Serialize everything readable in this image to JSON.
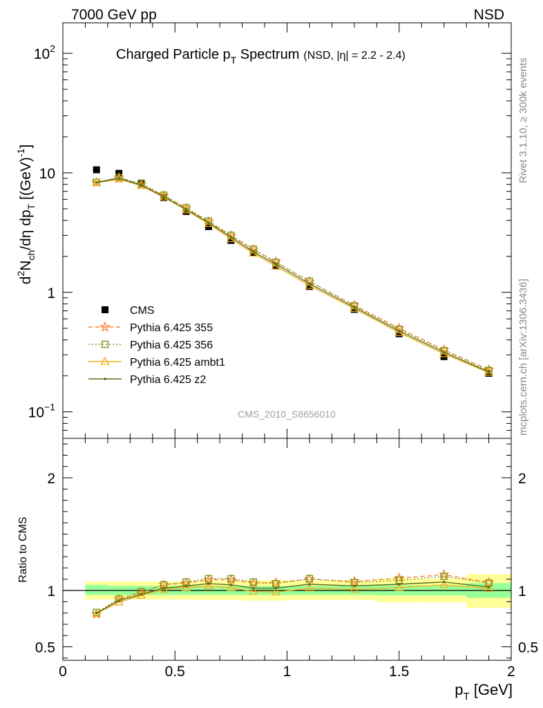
{
  "header": {
    "left": "7000 GeV pp",
    "right": "NSD"
  },
  "side_labels": {
    "rivet": "Rivet 3.1.10, ≥ 300k events",
    "mcplots": "mcplots.cern.ch [arXiv:1306.3436]"
  },
  "chart_data": [
    {
      "type": "line",
      "panel": "main",
      "title": "Charged Particle p",
      "title_sub": "T",
      "title_tail": " Spectrum",
      "title_note": "(NSD, |η| = 2.2 - 2.4)",
      "watermark": "CMS_2010_S8656010",
      "ylabel": "d²N_ch/dη dp_T [(GeV)⁻¹]",
      "yscale": "log",
      "ylim": [
        0.06,
        180
      ],
      "xlim": [
        0,
        2
      ],
      "yticks": [
        {
          "value": 100,
          "label": "10",
          "sup": "2"
        },
        {
          "value": 10,
          "label": "10",
          "sup": ""
        },
        {
          "value": 1,
          "label": "1",
          "sup": ""
        },
        {
          "value": 0.1,
          "label": "10",
          "sup": "−1"
        }
      ],
      "legend_position": "lower-left",
      "x": [
        0.15,
        0.25,
        0.35,
        0.45,
        0.55,
        0.65,
        0.75,
        0.85,
        0.95,
        1.1,
        1.3,
        1.5,
        1.7,
        1.9
      ],
      "series": [
        {
          "name": "CMS",
          "color": "#000000",
          "marker": "square-filled",
          "line": "none",
          "values": [
            10.6,
            9.9,
            8.2,
            6.2,
            4.75,
            3.55,
            2.72,
            2.14,
            1.68,
            1.12,
            0.72,
            0.45,
            0.29,
            0.21
          ]
        },
        {
          "name": "Pythia 6.425 355",
          "color": "#ff7f2a",
          "marker": "star-open",
          "line": "dashed",
          "values": [
            8.3,
            9.1,
            8.0,
            6.45,
            5.05,
            3.9,
            2.98,
            2.28,
            1.8,
            1.23,
            0.78,
            0.5,
            0.33,
            0.225
          ]
        },
        {
          "name": "Pythia 6.425 356",
          "color": "#7a9a1a",
          "marker": "square-open",
          "line": "dotted",
          "values": [
            8.35,
            9.15,
            8.1,
            6.5,
            5.1,
            3.95,
            3.0,
            2.3,
            1.78,
            1.24,
            0.77,
            0.49,
            0.325,
            0.222
          ]
        },
        {
          "name": "Pythia 6.425 ambt1",
          "color": "#f0b020",
          "marker": "triangle-open",
          "line": "solid",
          "values": [
            8.25,
            8.85,
            7.8,
            6.25,
            4.88,
            3.75,
            2.8,
            2.12,
            1.65,
            1.14,
            0.73,
            0.46,
            0.305,
            0.213
          ]
        },
        {
          "name": "Pythia 6.425 z2",
          "color": "#5a6e1c",
          "marker": "dot",
          "line": "solid",
          "values": [
            8.3,
            9.0,
            7.9,
            6.3,
            4.95,
            3.82,
            2.9,
            2.18,
            1.72,
            1.18,
            0.75,
            0.475,
            0.315,
            0.216
          ]
        }
      ]
    },
    {
      "type": "line",
      "panel": "ratio",
      "ylabel": "Ratio to CMS",
      "xlabel": "p",
      "xlabel_sub": "T",
      "xlabel_tail": " [GeV]",
      "ylim": [
        0.38,
        2.35
      ],
      "xlim": [
        0,
        2
      ],
      "yticks": [
        2,
        1,
        0.5
      ],
      "xticks": [
        0,
        0.5,
        1,
        1.5,
        2
      ],
      "xticklabels": [
        "0",
        "0.5",
        "1",
        "1.5",
        "2"
      ],
      "band_colors": {
        "stat": "#99ff99",
        "total": "#ffff99"
      },
      "bins": [
        {
          "lo": 0.1,
          "hi": 0.2,
          "stat": [
            0.96,
            1.05
          ],
          "total": [
            0.92,
            1.08
          ]
        },
        {
          "lo": 0.2,
          "hi": 0.3,
          "stat": [
            0.96,
            1.04
          ],
          "total": [
            0.92,
            1.08
          ]
        },
        {
          "lo": 0.3,
          "hi": 0.4,
          "stat": [
            0.96,
            1.04
          ],
          "total": [
            0.92,
            1.08
          ]
        },
        {
          "lo": 0.4,
          "hi": 0.5,
          "stat": [
            0.96,
            1.04
          ],
          "total": [
            0.92,
            1.08
          ]
        },
        {
          "lo": 0.5,
          "hi": 0.6,
          "stat": [
            0.96,
            1.04
          ],
          "total": [
            0.92,
            1.08
          ]
        },
        {
          "lo": 0.6,
          "hi": 0.7,
          "stat": [
            0.96,
            1.04
          ],
          "total": [
            0.915,
            1.085
          ]
        },
        {
          "lo": 0.7,
          "hi": 0.8,
          "stat": [
            0.96,
            1.04
          ],
          "total": [
            0.915,
            1.085
          ]
        },
        {
          "lo": 0.8,
          "hi": 0.9,
          "stat": [
            0.96,
            1.04
          ],
          "total": [
            0.91,
            1.09
          ]
        },
        {
          "lo": 0.9,
          "hi": 1.0,
          "stat": [
            0.96,
            1.04
          ],
          "total": [
            0.91,
            1.09
          ]
        },
        {
          "lo": 1.0,
          "hi": 1.2,
          "stat": [
            0.96,
            1.04
          ],
          "total": [
            0.915,
            1.085
          ]
        },
        {
          "lo": 1.2,
          "hi": 1.4,
          "stat": [
            0.96,
            1.04
          ],
          "total": [
            0.915,
            1.085
          ]
        },
        {
          "lo": 1.4,
          "hi": 1.6,
          "stat": [
            0.955,
            1.045
          ],
          "total": [
            0.895,
            1.105
          ]
        },
        {
          "lo": 1.6,
          "hi": 1.8,
          "stat": [
            0.955,
            1.045
          ],
          "total": [
            0.895,
            1.105
          ]
        },
        {
          "lo": 1.8,
          "hi": 2.0,
          "stat": [
            0.935,
            1.065
          ],
          "total": [
            0.845,
            1.145
          ]
        }
      ],
      "x": [
        0.15,
        0.25,
        0.35,
        0.45,
        0.55,
        0.65,
        0.75,
        0.85,
        0.95,
        1.1,
        1.3,
        1.5,
        1.7,
        1.9
      ],
      "series": [
        {
          "name": "Pythia 6.425 355",
          "color": "#ff7f2a",
          "marker": "star-open",
          "line": "dashed",
          "values": [
            0.79,
            0.92,
            0.98,
            1.05,
            1.065,
            1.095,
            1.095,
            1.065,
            1.07,
            1.1,
            1.08,
            1.11,
            1.14,
            1.07
          ]
        },
        {
          "name": "Pythia 6.425 356",
          "color": "#7a9a1a",
          "marker": "square-open",
          "line": "dotted",
          "values": [
            0.805,
            0.925,
            0.99,
            1.05,
            1.075,
            1.105,
            1.105,
            1.075,
            1.06,
            1.105,
            1.07,
            1.09,
            1.125,
            1.065
          ]
        },
        {
          "name": "Pythia 6.425 ambt1",
          "color": "#f0b020",
          "marker": "triangle-open",
          "line": "solid",
          "values": [
            0.795,
            0.895,
            0.955,
            1.01,
            1.025,
            1.04,
            1.025,
            0.99,
            0.985,
            1.02,
            1.01,
            1.025,
            1.05,
            1.015
          ]
        },
        {
          "name": "Pythia 6.425 z2",
          "color": "#5a6e1c",
          "marker": "dot",
          "line": "solid",
          "values": [
            0.8,
            0.91,
            0.965,
            1.02,
            1.04,
            1.06,
            1.05,
            1.02,
            1.02,
            1.055,
            1.04,
            1.055,
            1.075,
            1.03
          ]
        }
      ]
    }
  ]
}
